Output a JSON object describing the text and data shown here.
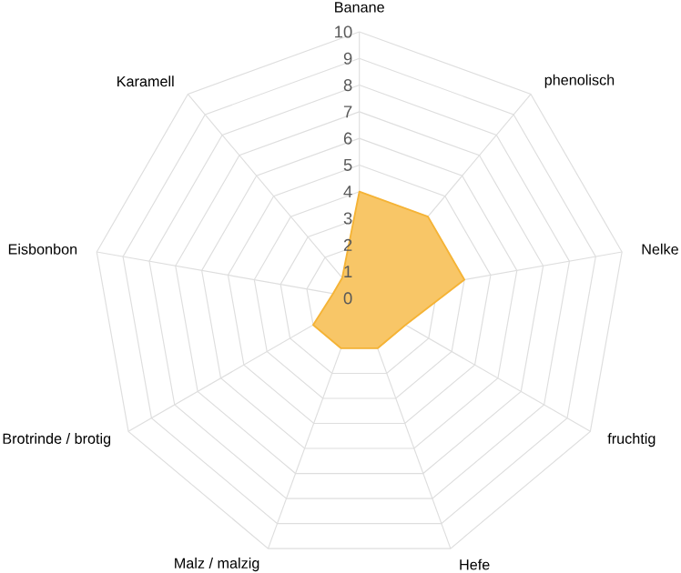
{
  "chart_data": {
    "type": "radar",
    "categories": [
      "Banane",
      "phenolisch",
      "Nelke",
      "fruchtig",
      "Hefe",
      "Malz / malzig",
      "Brotrinde / brotig",
      "Eisbonbon",
      "Karamell"
    ],
    "series": [
      {
        "color": "#f5b335",
        "values": [
          4,
          4,
          4,
          2,
          2,
          2,
          2,
          1,
          1
        ]
      }
    ],
    "ylim": [
      0,
      10
    ],
    "yticks": [
      0,
      1,
      2,
      3,
      4,
      5,
      6,
      7,
      8,
      9,
      10
    ],
    "grid": true
  }
}
